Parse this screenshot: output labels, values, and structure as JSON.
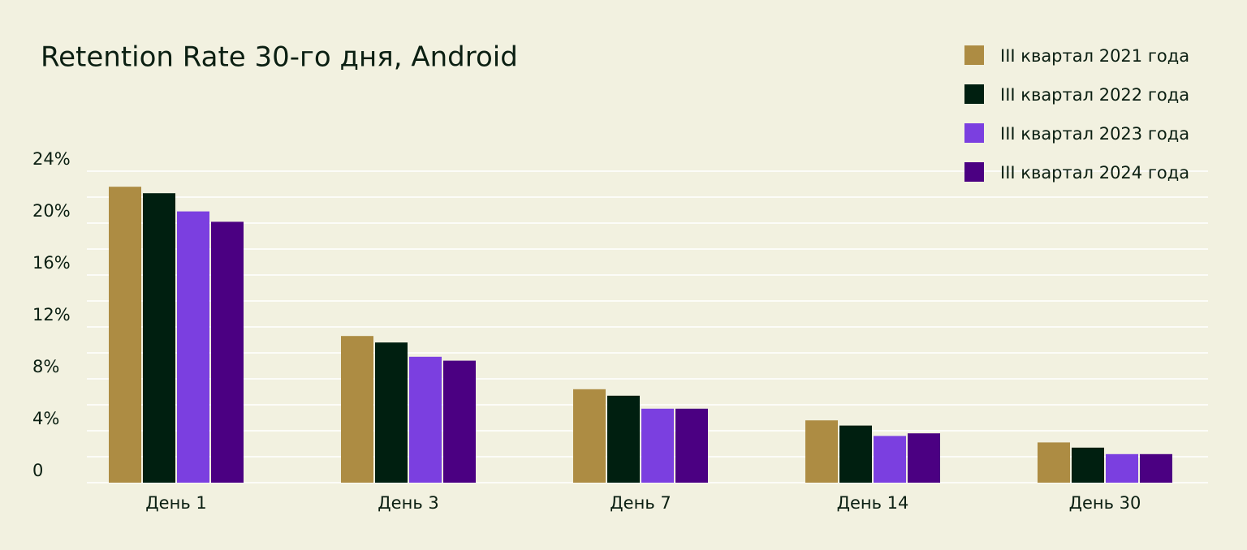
{
  "chart_data": {
    "type": "bar",
    "title": "Retention Rate 30-го дня, Android",
    "categories": [
      "День 1",
      "День 3",
      "День 7",
      "День 14",
      "День 30"
    ],
    "series": [
      {
        "name": "III квартал 2021 года",
        "color": "#ad8c43",
        "values": [
          22.8,
          11.3,
          7.2,
          4.8,
          3.1
        ]
      },
      {
        "name": "III квартал 2022 года",
        "color": "#001f10",
        "values": [
          22.3,
          10.8,
          6.7,
          4.4,
          2.7
        ]
      },
      {
        "name": "III квартал 2023 года",
        "color": "#7b3fe0",
        "values": [
          20.9,
          9.7,
          5.7,
          3.6,
          2.2
        ]
      },
      {
        "name": "III квартал 2024 года",
        "color": "#4b0082",
        "values": [
          20.1,
          9.4,
          5.7,
          3.8,
          2.2
        ]
      }
    ],
    "ylim": [
      0,
      24
    ],
    "yticks": [
      0,
      {
        "value": 4,
        "label": "4%"
      },
      {
        "value": 8,
        "label": "8%"
      },
      {
        "value": 12,
        "label": "12%"
      },
      {
        "value": 16,
        "label": "16%"
      },
      {
        "value": 20,
        "label": "20%"
      },
      {
        "value": 24,
        "label": "24%"
      }
    ],
    "minor_yticks": [
      2,
      6,
      10,
      14,
      18,
      22
    ],
    "grid": true,
    "legend": "top-right"
  }
}
